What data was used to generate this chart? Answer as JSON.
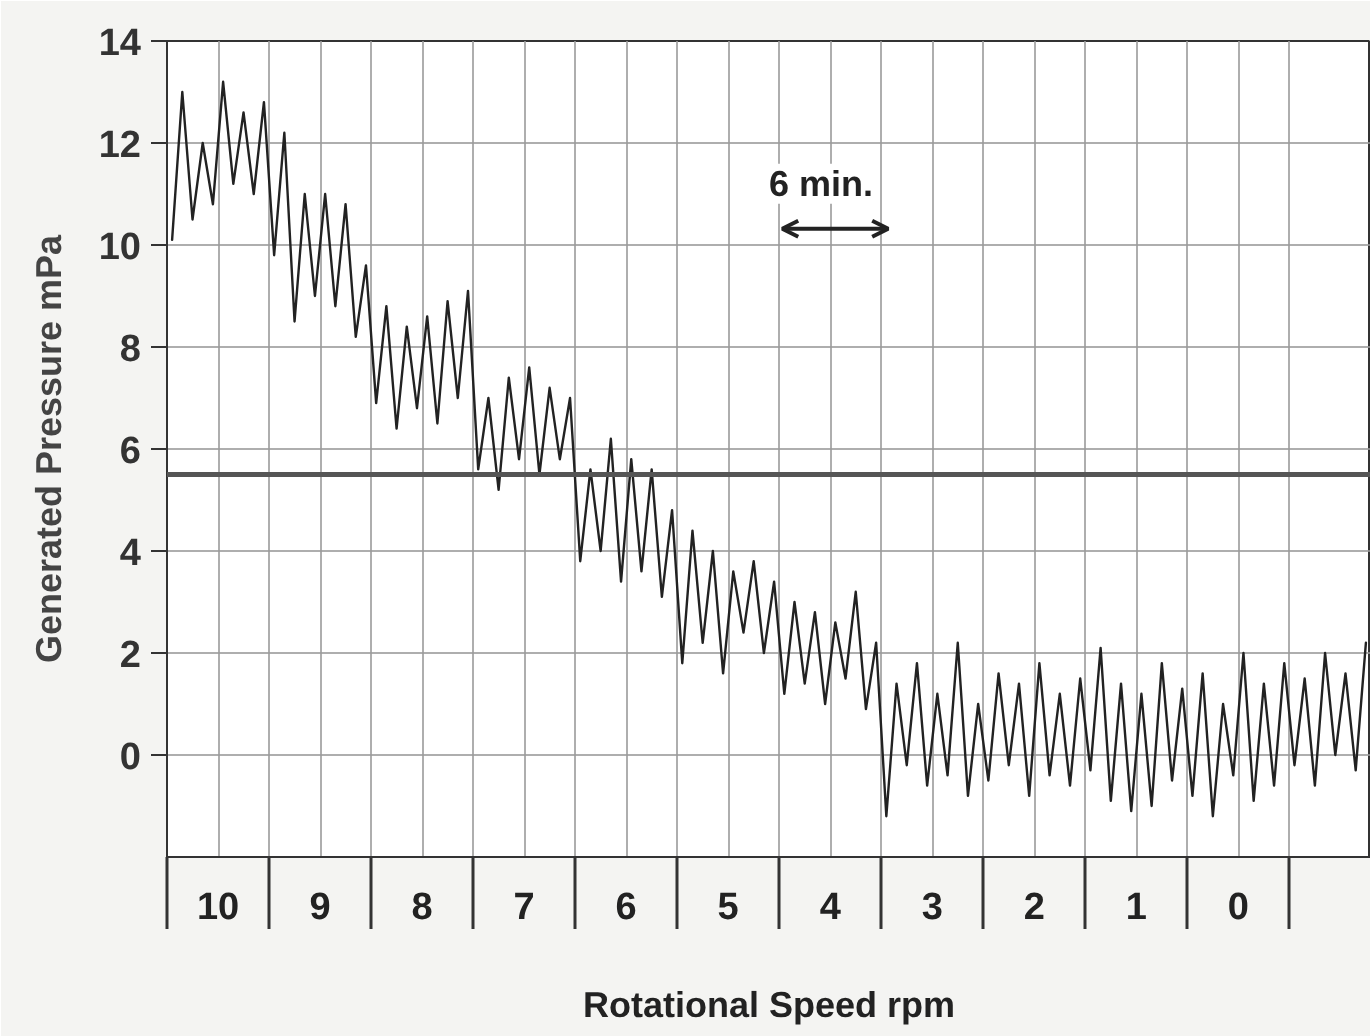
{
  "chart_data": {
    "type": "line",
    "xlabel": "Rotational Speed rpm",
    "ylabel": "Generated Pressure mPa",
    "x": [
      10.45,
      10.35,
      10.25,
      10.15,
      10.05,
      9.95,
      9.85,
      9.75,
      9.65,
      9.55,
      9.45,
      9.35,
      9.25,
      9.15,
      9.05,
      8.95,
      8.85,
      8.75,
      8.65,
      8.55,
      8.45,
      8.35,
      8.25,
      8.15,
      8.05,
      7.95,
      7.85,
      7.75,
      7.65,
      7.55,
      7.45,
      7.35,
      7.25,
      7.15,
      7.05,
      6.95,
      6.85,
      6.75,
      6.65,
      6.55,
      6.45,
      6.35,
      6.25,
      6.15,
      6.05,
      5.95,
      5.85,
      5.75,
      5.65,
      5.55,
      5.45,
      5.35,
      5.25,
      5.15,
      5.05,
      4.95,
      4.85,
      4.75,
      4.65,
      4.55,
      4.45,
      4.35,
      4.25,
      4.15,
      4.05,
      3.95,
      3.85,
      3.75,
      3.65,
      3.55,
      3.45,
      3.35,
      3.25,
      3.15,
      3.05,
      2.95,
      2.85,
      2.75,
      2.65,
      2.55,
      2.45,
      2.35,
      2.25,
      2.15,
      2.05,
      1.95,
      1.85,
      1.75,
      1.65,
      1.55,
      1.45,
      1.35,
      1.25,
      1.15,
      1.05,
      0.95,
      0.85,
      0.75,
      0.65,
      0.55,
      0.45,
      0.35,
      0.25,
      0.15,
      0.05,
      -0.05,
      -0.15,
      -0.25,
      -0.35,
      -0.45,
      -0.55,
      -0.65,
      -0.75,
      -0.85,
      -0.95,
      -1.05,
      -1.15,
      -1.25
    ],
    "series": [
      {
        "color": "#222222",
        "values": [
          10.1,
          13.0,
          10.5,
          12.0,
          10.8,
          13.2,
          11.2,
          12.6,
          11.0,
          12.8,
          9.8,
          12.2,
          8.5,
          11.0,
          9.0,
          11.0,
          8.8,
          10.8,
          8.2,
          9.6,
          6.9,
          8.8,
          6.4,
          8.4,
          6.8,
          8.6,
          6.5,
          8.9,
          7.0,
          9.1,
          5.6,
          7.0,
          5.2,
          7.4,
          5.8,
          7.6,
          5.5,
          7.2,
          5.8,
          7.0,
          3.8,
          5.6,
          4.0,
          6.2,
          3.4,
          5.8,
          3.6,
          5.6,
          3.1,
          4.8,
          1.8,
          4.4,
          2.2,
          4.0,
          1.6,
          3.6,
          2.4,
          3.8,
          2.0,
          3.4,
          1.2,
          3.0,
          1.4,
          2.8,
          1.0,
          2.6,
          1.5,
          3.2,
          0.9,
          2.2,
          -1.2,
          1.4,
          -0.2,
          1.8,
          -0.6,
          1.2,
          -0.4,
          2.2,
          -0.8,
          1.0,
          -0.5,
          1.6,
          -0.2,
          1.4,
          -0.8,
          1.8,
          -0.4,
          1.2,
          -0.6,
          1.5,
          -0.3,
          2.1,
          -0.9,
          1.4,
          -1.1,
          1.2,
          -1.0,
          1.8,
          -0.5,
          1.3,
          -0.8,
          1.6,
          -1.2,
          1.0,
          -0.4,
          2.0,
          -0.9,
          1.4,
          -0.6,
          1.8,
          -0.2,
          1.5,
          -0.6,
          2.0,
          0.0,
          1.6,
          -0.3,
          2.2
        ]
      }
    ],
    "xlim": [
      10.5,
      -1.3
    ],
    "xticks": [
      {
        "value": 10.5,
        "label": null
      },
      10,
      {
        "value": 9.5,
        "label": null
      },
      9,
      {
        "value": 8.5,
        "label": null
      },
      8,
      {
        "value": 7.5,
        "label": null
      },
      7,
      {
        "value": 6.5,
        "label": null
      },
      6,
      {
        "value": 5.5,
        "label": null
      },
      5,
      {
        "value": 4.5,
        "label": null
      },
      4,
      {
        "value": 3.5,
        "label": null
      },
      3,
      {
        "value": 2.5,
        "label": null
      },
      2,
      {
        "value": 1.5,
        "label": null
      },
      1,
      {
        "value": 0.5,
        "label": null
      },
      0,
      {
        "value": -0.5,
        "label": null
      }
    ],
    "ylim": [
      -2,
      14
    ],
    "yticks": [
      0,
      2,
      4,
      6,
      8,
      10,
      12,
      14
    ],
    "grid": true,
    "ref_lines": [
      {
        "axis": "y",
        "value": 5.5,
        "color": "#555555"
      }
    ],
    "annotations": [
      "6 min."
    ]
  }
}
